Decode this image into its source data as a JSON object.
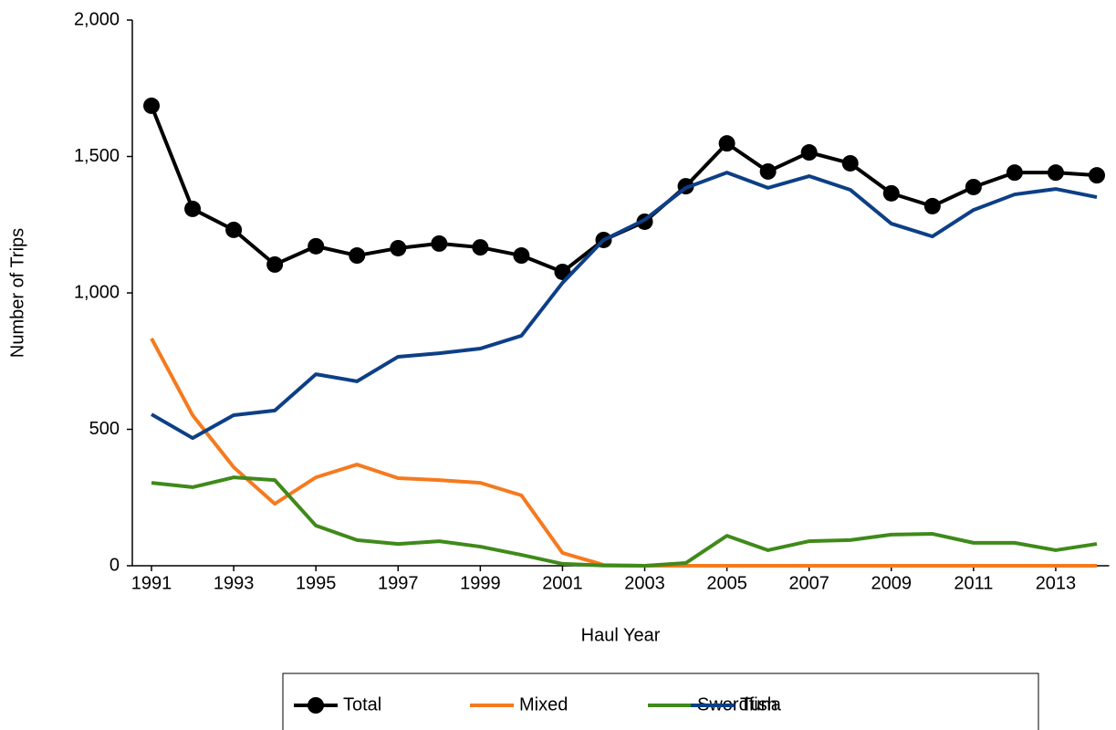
{
  "chart_data": {
    "type": "line",
    "x_label": "Haul Year",
    "y_label": "Number of Trips",
    "x": [
      1991,
      1992,
      1993,
      1994,
      1995,
      1996,
      1997,
      1998,
      1999,
      2000,
      2001,
      2002,
      2003,
      2004,
      2005,
      2006,
      2007,
      2008,
      2009,
      2010,
      2011,
      2012,
      2013,
      2014
    ],
    "xlim": [
      1990.5,
      2014.3
    ],
    "xticks": [
      1991,
      1993,
      1995,
      1997,
      1999,
      2001,
      2003,
      2005,
      2007,
      2009,
      2011,
      2013
    ],
    "ylim": [
      0,
      2000
    ],
    "yticks": [
      0,
      500,
      {
        "value": 1000,
        "label": "1,000"
      },
      {
        "value": 1500,
        "label": "1,500"
      },
      {
        "value": 2000,
        "label": "2,000"
      }
    ],
    "legend": "bottom",
    "series": [
      {
        "name": "Total",
        "color": "#000000",
        "marker": "circle",
        "values": [
          1686,
          1308,
          1231,
          1104,
          1171,
          1137,
          1164,
          1181,
          1167,
          1137,
          1077,
          1194,
          1261,
          1391,
          1548,
          1445,
          1515,
          1475,
          1365,
          1318,
          1388,
          1441,
          1441,
          1431
        ]
      },
      {
        "name": "Mixed",
        "color": "#f57a1e",
        "values": [
          833,
          552,
          361,
          227,
          324,
          371,
          321,
          314,
          304,
          258,
          47,
          3,
          0,
          0,
          0,
          0,
          0,
          0,
          0,
          0,
          0,
          0,
          0,
          0
        ]
      },
      {
        "name": "Swordfish",
        "color": "#3f8a1a",
        "values": [
          304,
          288,
          324,
          314,
          147,
          94,
          80,
          90,
          70,
          40,
          7,
          1,
          0,
          10,
          110,
          57,
          90,
          94,
          114,
          117,
          84,
          84,
          57,
          80
        ]
      },
      {
        "name": "Tuna",
        "color": "#0d3f86",
        "values": [
          555,
          468,
          552,
          569,
          702,
          676,
          766,
          779,
          796,
          843,
          1037,
          1194,
          1268,
          1385,
          1441,
          1385,
          1428,
          1378,
          1254,
          1207,
          1304,
          1361,
          1381,
          1351
        ]
      }
    ]
  }
}
